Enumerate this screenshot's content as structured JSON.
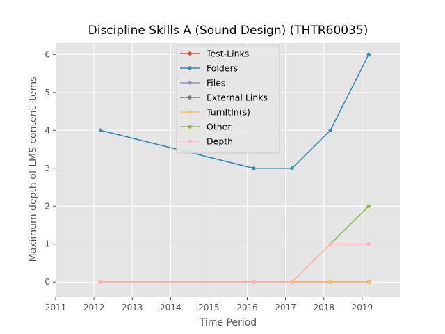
{
  "chart_data": {
    "type": "line",
    "title": "Discipline Skills A (Sound Design) (THTR60035)",
    "xlabel": "Time Period",
    "ylabel": "Maximum depth of LMS content items",
    "xlim": [
      2011,
      2020
    ],
    "ylim": [
      -0.4,
      6.3
    ],
    "xticks": [
      2011,
      2012,
      2013,
      2014,
      2015,
      2016,
      2017,
      2018,
      2019
    ],
    "yticks": [
      0,
      1,
      2,
      3,
      4,
      5,
      6
    ],
    "grid": true,
    "legend_position": "top-center",
    "series": [
      {
        "name": "Test-Links",
        "color": "#E24A33",
        "x": [
          2012.17,
          2016.17,
          2017.17,
          2018.17,
          2019.17
        ],
        "values": [
          0,
          0,
          0,
          0,
          0
        ]
      },
      {
        "name": "Folders",
        "color": "#348ABD",
        "x": [
          2012.17,
          2016.17,
          2017.17,
          2018.17,
          2019.17
        ],
        "values": [
          4,
          3,
          3,
          4,
          6
        ]
      },
      {
        "name": "Files",
        "color": "#988ED5",
        "x": [
          2012.17,
          2016.17,
          2017.17,
          2018.17,
          2019.17
        ],
        "values": [
          0,
          0,
          0,
          0,
          0
        ]
      },
      {
        "name": "External Links",
        "color": "#777777",
        "x": [
          2012.17,
          2016.17,
          2017.17,
          2018.17,
          2019.17
        ],
        "values": [
          0,
          0,
          0,
          0,
          0
        ]
      },
      {
        "name": "TurnItIn(s)",
        "color": "#FBC15E",
        "x": [
          2012.17,
          2016.17,
          2017.17,
          2018.17,
          2019.17
        ],
        "values": [
          0,
          0,
          0,
          0,
          0
        ]
      },
      {
        "name": "Other",
        "color": "#8EBA42",
        "x": [
          2012.17,
          2016.17,
          2017.17,
          2018.17,
          2019.17
        ],
        "values": [
          0,
          0,
          0,
          1,
          2
        ]
      },
      {
        "name": "Depth",
        "color": "#FFB5B8",
        "x": [
          2012.17,
          2016.17,
          2017.17,
          2018.17,
          2019.17
        ],
        "values": [
          0,
          0,
          0,
          1,
          1
        ]
      }
    ]
  }
}
